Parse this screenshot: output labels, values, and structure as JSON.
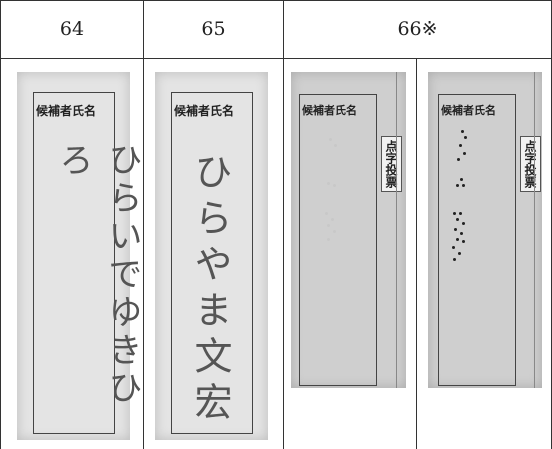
{
  "table": {
    "header": [
      "64",
      "65",
      "66※"
    ],
    "ballots": [
      {
        "heading": "候補者氏名",
        "text": "ひらいでゆきひろ"
      },
      {
        "heading": "候補者氏名",
        "text": "ひらやま文宏"
      },
      {
        "heading": "候補者氏名",
        "side_label": "点字投票"
      },
      {
        "heading": "候補者氏名",
        "side_label": "点字投票"
      }
    ]
  }
}
